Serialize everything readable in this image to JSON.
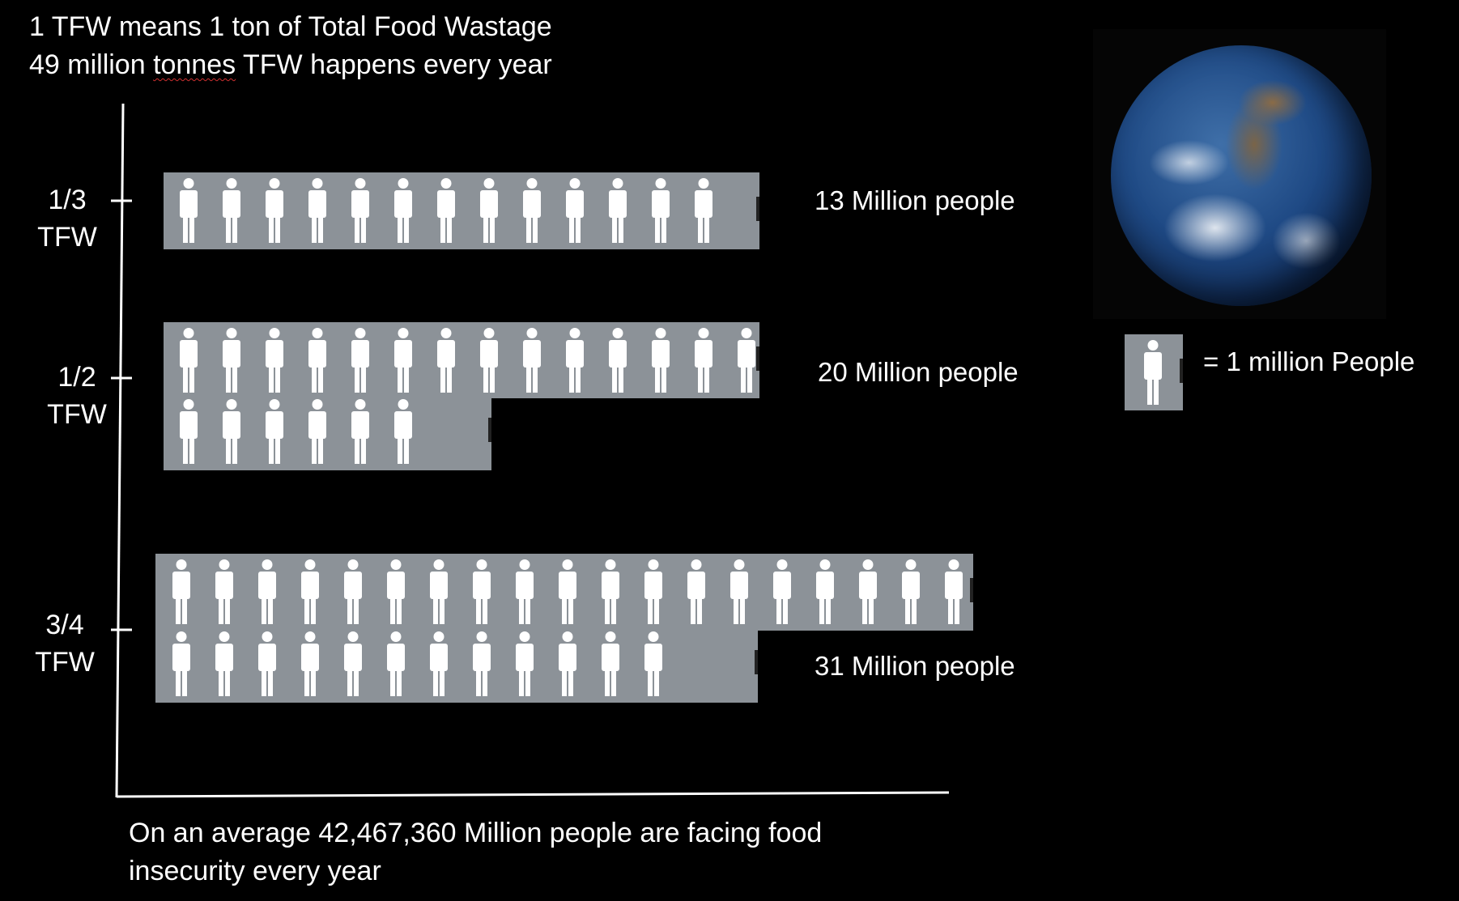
{
  "header": {
    "line1": "1 TFW means 1 ton of Total Food Wastage",
    "line2_pre": "49 million ",
    "line2_mid": "tonnes",
    "line2_post": " TFW happens every year"
  },
  "chart_data": {
    "type": "pictograph",
    "unit": "= 1  million People",
    "rows": [
      {
        "label_top": "1/3",
        "label_bottom": "TFW",
        "value": 13,
        "count_label": "13 Million people"
      },
      {
        "label_top": "1/2",
        "label_bottom": "TFW",
        "value": 20,
        "count_label": "20 Million people"
      },
      {
        "label_top": "3/4",
        "label_bottom": "TFW",
        "value": 31,
        "count_label": "31 Million people"
      }
    ],
    "colors": {
      "tile": "#8c9298",
      "person": "#ffffff",
      "axis": "#ffffff"
    }
  },
  "footer": "On an average 42,467,360 Million people are facing food insecurity every year",
  "legend": {
    "text": "= 1  million People"
  }
}
